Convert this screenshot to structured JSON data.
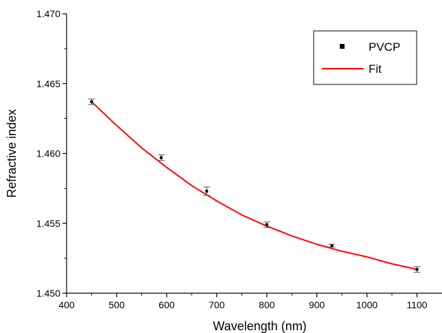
{
  "chart_data": {
    "type": "scatter",
    "xlabel": "Wavelength (nm)",
    "ylabel": "Refractive index",
    "xlim": [
      400,
      1150
    ],
    "ylim": [
      1.45,
      1.47
    ],
    "x_ticks": [
      400,
      500,
      600,
      700,
      800,
      900,
      1000,
      1100
    ],
    "x_tick_labels": [
      "400",
      "500",
      "600",
      "700",
      "800",
      "900",
      "1000",
      "1100"
    ],
    "y_ticks": [
      1.45,
      1.455,
      1.46,
      1.465,
      1.47
    ],
    "y_tick_labels": [
      "1.450",
      "1.455",
      "1.460",
      "1.465",
      "1.470"
    ],
    "grid": false,
    "legend_position": "top-right",
    "series": [
      {
        "name": "PVCP",
        "kind": "points-with-error-bars",
        "color": "#000000",
        "x": [
          450,
          589,
          680,
          800,
          930,
          1100
        ],
        "y": [
          1.4637,
          1.4597,
          1.4573,
          1.4549,
          1.4534,
          1.4517
        ],
        "error": [
          0.0002,
          0.0002,
          0.0003,
          0.0002,
          0.0001,
          0.0002
        ]
      },
      {
        "name": "Fit",
        "kind": "line",
        "color": "#ff0000",
        "x": [
          450,
          500,
          550,
          600,
          650,
          700,
          750,
          800,
          850,
          900,
          950,
          1000,
          1050,
          1100
        ],
        "y": [
          1.4637,
          1.462,
          1.4604,
          1.459,
          1.4577,
          1.4566,
          1.4556,
          1.4548,
          1.4541,
          1.4535,
          1.453,
          1.4526,
          1.4521,
          1.4517
        ]
      }
    ]
  }
}
